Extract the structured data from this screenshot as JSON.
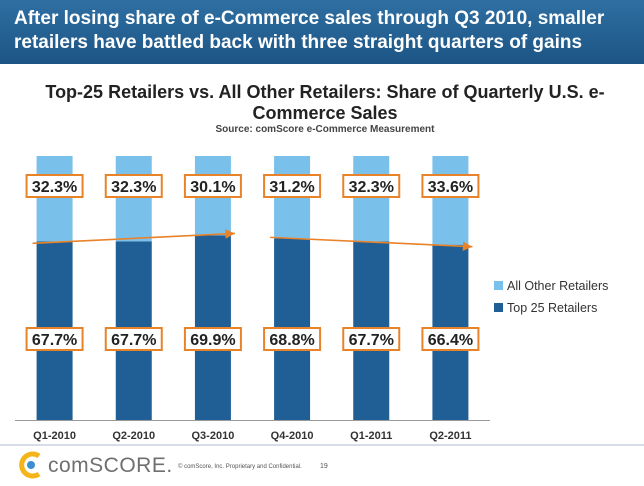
{
  "header": {
    "headline": "After losing share of e-Commerce sales through Q3 2010, smaller retailers have battled back with three straight quarters of gains"
  },
  "chart_data": {
    "type": "bar",
    "stacked": true,
    "title": "Top-25 Retailers vs. All Other Retailers: Share of Quarterly U.S. e-Commerce Sales",
    "subtitle": "Source: comScore e-Commerce Measurement",
    "categories": [
      "Q1-2010",
      "Q2-2010",
      "Q3-2010",
      "Q4-2010",
      "Q1-2011",
      "Q2-2011"
    ],
    "series": [
      {
        "name": "Top 25 Retailers",
        "values": [
          67.7,
          67.7,
          69.9,
          68.8,
          67.7,
          66.4
        ],
        "labels": [
          "67.7%",
          "67.7%",
          "69.9%",
          "68.8%",
          "67.7%",
          "66.4%"
        ],
        "color": "#1f5f96"
      },
      {
        "name": "All Other Retailers",
        "values": [
          32.3,
          32.3,
          30.1,
          31.2,
          32.3,
          33.6
        ],
        "labels": [
          "32.3%",
          "32.3%",
          "30.1%",
          "31.2%",
          "32.3%",
          "33.6%"
        ],
        "color": "#79c1ea"
      }
    ],
    "ylim": [
      0,
      100
    ],
    "legend_position": "right",
    "annotation_color": "#e8832a"
  },
  "footer": {
    "logo_text": "comSCORE.",
    "copyright": "© comScore, Inc.  Proprietary and Confidential.",
    "page_number": "19"
  }
}
